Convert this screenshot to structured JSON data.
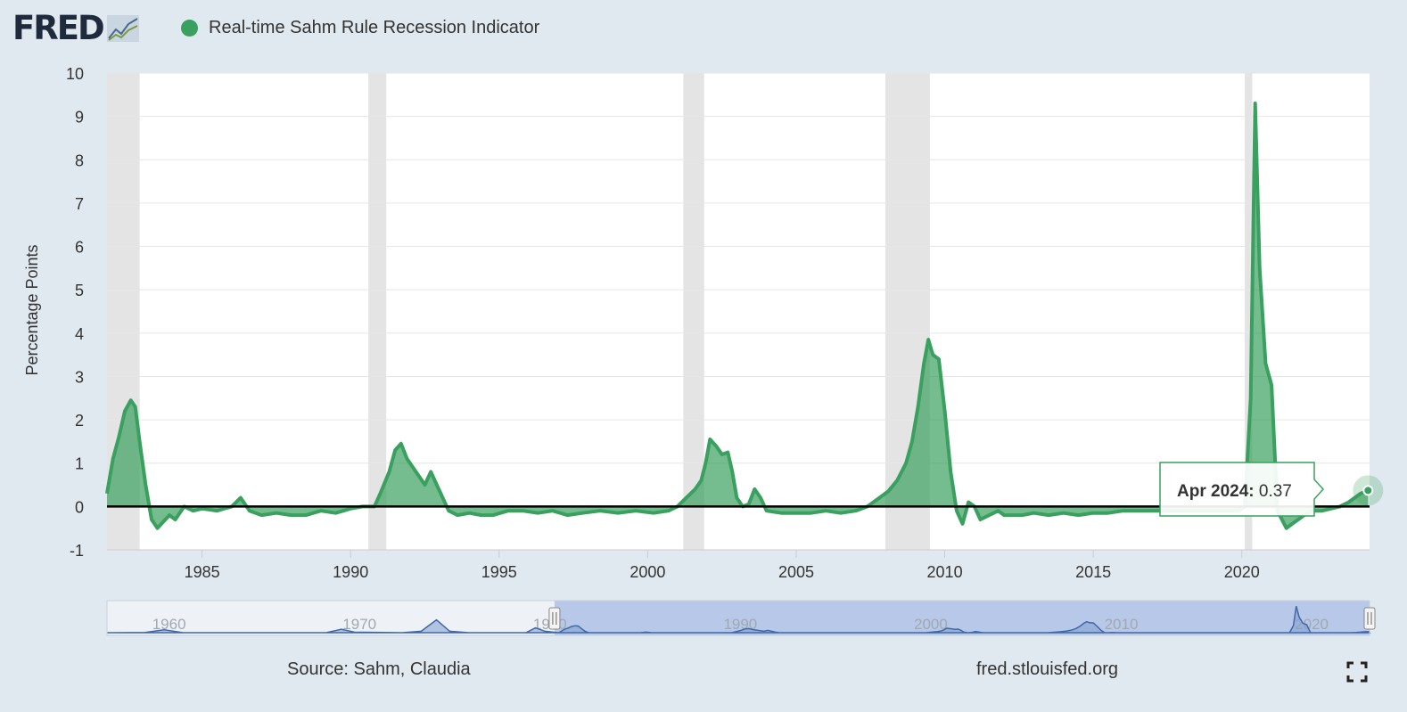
{
  "header": {
    "logo": "FRED",
    "legend_label": "Real-time Sahm Rule Recession Indicator",
    "series_color": "#3aa05f"
  },
  "footer": {
    "source": "Source: Sahm, Claudia",
    "url": "fred.stlouisfed.org",
    "fullscreen_icon": "fullscreen-icon"
  },
  "tooltip": {
    "date": "Apr 2024:",
    "value": "0.37"
  },
  "navigator": {
    "labels": [
      "1960",
      "1970",
      "1980",
      "1990",
      "2000",
      "2010",
      "2020"
    ],
    "range_start": 1981.5,
    "range_end": 2024.3
  },
  "chart_data": {
    "type": "area",
    "title": "Real-time Sahm Rule Recession Indicator",
    "ylabel": "Percentage Points",
    "xlim": [
      1981.8,
      2024.3
    ],
    "ylim": [
      -1,
      10
    ],
    "yticks": [
      "-1",
      "0",
      "1",
      "2",
      "3",
      "4",
      "5",
      "6",
      "7",
      "8",
      "9",
      "10"
    ],
    "xticks": [
      "1985",
      "1990",
      "1995",
      "2000",
      "2005",
      "2010",
      "2015",
      "2020"
    ],
    "grid": true,
    "legend": "top-left",
    "recessions": [
      [
        1981.8,
        1982.9
      ],
      [
        1990.6,
        1991.2
      ],
      [
        2001.2,
        2001.9
      ],
      [
        2008.0,
        2009.5
      ],
      [
        2020.1,
        2020.35
      ]
    ],
    "series": [
      {
        "name": "Real-time Sahm Rule Recession Indicator",
        "color": "#3aa05f",
        "x": [
          1981.8,
          1982.0,
          1982.2,
          1982.4,
          1982.6,
          1982.75,
          1982.9,
          1983.1,
          1983.3,
          1983.5,
          1983.7,
          1983.9,
          1984.1,
          1984.4,
          1984.7,
          1985.0,
          1985.5,
          1986.0,
          1986.3,
          1986.6,
          1987.0,
          1987.5,
          1988.0,
          1988.5,
          1989.0,
          1989.5,
          1990.0,
          1990.4,
          1990.8,
          1991.0,
          1991.3,
          1991.5,
          1991.7,
          1991.9,
          1992.1,
          1992.3,
          1992.5,
          1992.7,
          1992.9,
          1993.1,
          1993.3,
          1993.6,
          1994.0,
          1994.4,
          1994.8,
          1995.3,
          1995.8,
          1996.3,
          1996.8,
          1997.3,
          1997.8,
          1998.4,
          1999.0,
          1999.6,
          2000.2,
          2000.7,
          2001.0,
          2001.3,
          2001.6,
          2001.8,
          2001.95,
          2002.1,
          2002.3,
          2002.5,
          2002.7,
          2002.85,
          2003.0,
          2003.2,
          2003.4,
          2003.6,
          2003.8,
          2004.0,
          2004.5,
          2005.0,
          2005.5,
          2006.0,
          2006.5,
          2007.0,
          2007.4,
          2007.8,
          2008.1,
          2008.4,
          2008.7,
          2008.9,
          2009.1,
          2009.3,
          2009.45,
          2009.6,
          2009.8,
          2010.0,
          2010.2,
          2010.4,
          2010.6,
          2010.8,
          2011.0,
          2011.2,
          2011.5,
          2011.8,
          2012.0,
          2012.3,
          2012.6,
          2013.0,
          2013.5,
          2014.0,
          2014.5,
          2015.0,
          2015.5,
          2016.0,
          2016.5,
          2017.0,
          2017.5,
          2018.0,
          2018.5,
          2019.0,
          2019.5,
          2019.9,
          2020.1,
          2020.3,
          2020.45,
          2020.6,
          2020.8,
          2021.0,
          2021.2,
          2021.35,
          2021.5,
          2021.7,
          2021.9,
          2022.1,
          2022.4,
          2022.7,
          2023.0,
          2023.3,
          2023.6,
          2023.8,
          2024.0,
          2024.25
        ],
        "y": [
          0.3,
          1.1,
          1.6,
          2.2,
          2.45,
          2.3,
          1.5,
          0.5,
          -0.3,
          -0.5,
          -0.35,
          -0.2,
          -0.3,
          0.0,
          -0.1,
          -0.05,
          -0.1,
          0.0,
          0.2,
          -0.1,
          -0.2,
          -0.15,
          -0.2,
          -0.2,
          -0.1,
          -0.15,
          -0.05,
          0.0,
          0.0,
          0.3,
          0.8,
          1.3,
          1.45,
          1.1,
          0.9,
          0.7,
          0.5,
          0.8,
          0.5,
          0.2,
          -0.1,
          -0.2,
          -0.15,
          -0.2,
          -0.2,
          -0.1,
          -0.1,
          -0.15,
          -0.1,
          -0.2,
          -0.15,
          -0.1,
          -0.15,
          -0.1,
          -0.15,
          -0.1,
          0.0,
          0.2,
          0.4,
          0.6,
          1.0,
          1.55,
          1.4,
          1.2,
          1.25,
          0.8,
          0.2,
          0.0,
          0.05,
          0.4,
          0.2,
          -0.1,
          -0.15,
          -0.15,
          -0.15,
          -0.1,
          -0.15,
          -0.1,
          0.0,
          0.2,
          0.35,
          0.6,
          1.0,
          1.5,
          2.3,
          3.3,
          3.85,
          3.5,
          3.4,
          2.2,
          0.8,
          -0.1,
          -0.4,
          0.1,
          0.0,
          -0.3,
          -0.2,
          -0.1,
          -0.2,
          -0.2,
          -0.2,
          -0.15,
          -0.2,
          -0.15,
          -0.2,
          -0.15,
          -0.15,
          -0.1,
          -0.1,
          -0.1,
          -0.1,
          -0.1,
          -0.1,
          -0.1,
          -0.1,
          -0.1,
          0.0,
          2.5,
          9.3,
          5.5,
          3.3,
          2.8,
          -0.1,
          -0.3,
          -0.5,
          -0.4,
          -0.3,
          -0.2,
          -0.1,
          -0.1,
          -0.05,
          0.0,
          0.1,
          0.2,
          0.3,
          0.37
        ]
      }
    ]
  }
}
